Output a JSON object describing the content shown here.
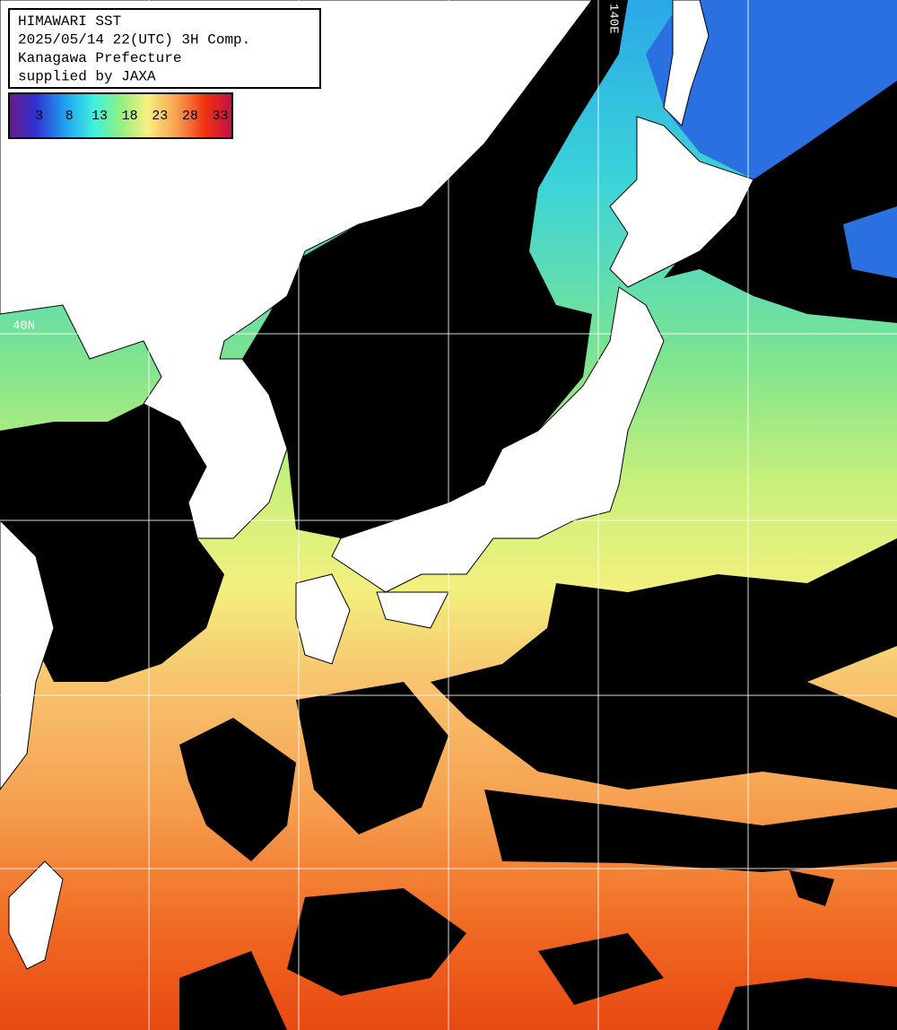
{
  "header": {
    "lines": [
      "HIMAWARI SST",
      "2025/05/14 22(UTC) 3H Comp.",
      "Kanagawa Prefecture",
      "supplied by JAXA"
    ]
  },
  "legend": {
    "range": [
      -2,
      35
    ],
    "ticks": [
      3,
      8,
      13,
      18,
      23,
      28,
      33
    ]
  },
  "grid_labels": {
    "longitude": "140E",
    "latitude": "40N"
  }
}
